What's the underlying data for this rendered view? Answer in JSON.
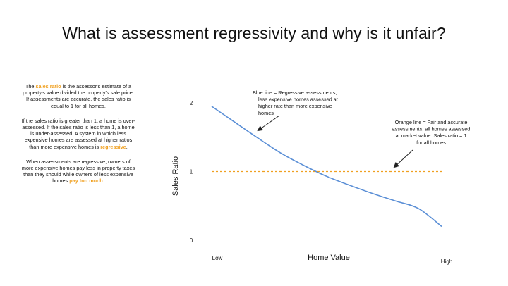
{
  "slide": {
    "title": "What is assessment regressivity and why is it unfair?"
  },
  "left_text": {
    "p1": {
      "pre": "The ",
      "highlight": "sales ratio",
      "post": " is the assessor's estimate of a property's value divided the property's sale price. If assessments are accurate, the sales ratio is equal to 1 for all homes."
    },
    "p2": {
      "pre": "If the sales ratio is greater than 1, a home is over-assessed. If the sales ratio is less than 1, a home is under-assessed. A system in which less expensive homes are assessed at higher ratios than more expensive homes is ",
      "highlight": "regressive",
      "post": "."
    },
    "p3": {
      "pre": "When assessments are regressive, owners of more expensive homes pay less in property taxes than they should while owners of less expensive homes ",
      "highlight": "pay too much",
      "post": "."
    }
  },
  "chart_data": {
    "type": "line",
    "xlabel": "Home Value",
    "ylabel": "Sales Ratio",
    "x_tick_labels": [
      "Low",
      "High"
    ],
    "y_ticks": [
      "2",
      "1",
      "0"
    ],
    "ylim": [
      0,
      2
    ],
    "xlim": [
      0,
      1
    ],
    "series": [
      {
        "color": "#5b8fd6",
        "style": "solid",
        "x": [
          0,
          0.1,
          0.2,
          0.3,
          0.4,
          0.5,
          0.6,
          0.7,
          0.8,
          0.9,
          1.0
        ],
        "y": [
          1.95,
          1.72,
          1.49,
          1.27,
          1.09,
          0.93,
          0.8,
          0.68,
          0.57,
          0.46,
          0.2
        ]
      },
      {
        "color": "#f0a020",
        "style": "dashed",
        "x": [
          0,
          1.0
        ],
        "y": [
          1,
          1
        ]
      }
    ],
    "annotations": [
      {
        "lines": [
          "Blue line = Regressive assessments,",
          "less expensive homes assessed at",
          "higher rate than more expensive",
          "homes"
        ]
      },
      {
        "lines": [
          "Orange line = Fair and accurate",
          "assessments, all homes assessed",
          "at market value. Sales ratio = 1",
          "for all homes"
        ]
      }
    ]
  }
}
